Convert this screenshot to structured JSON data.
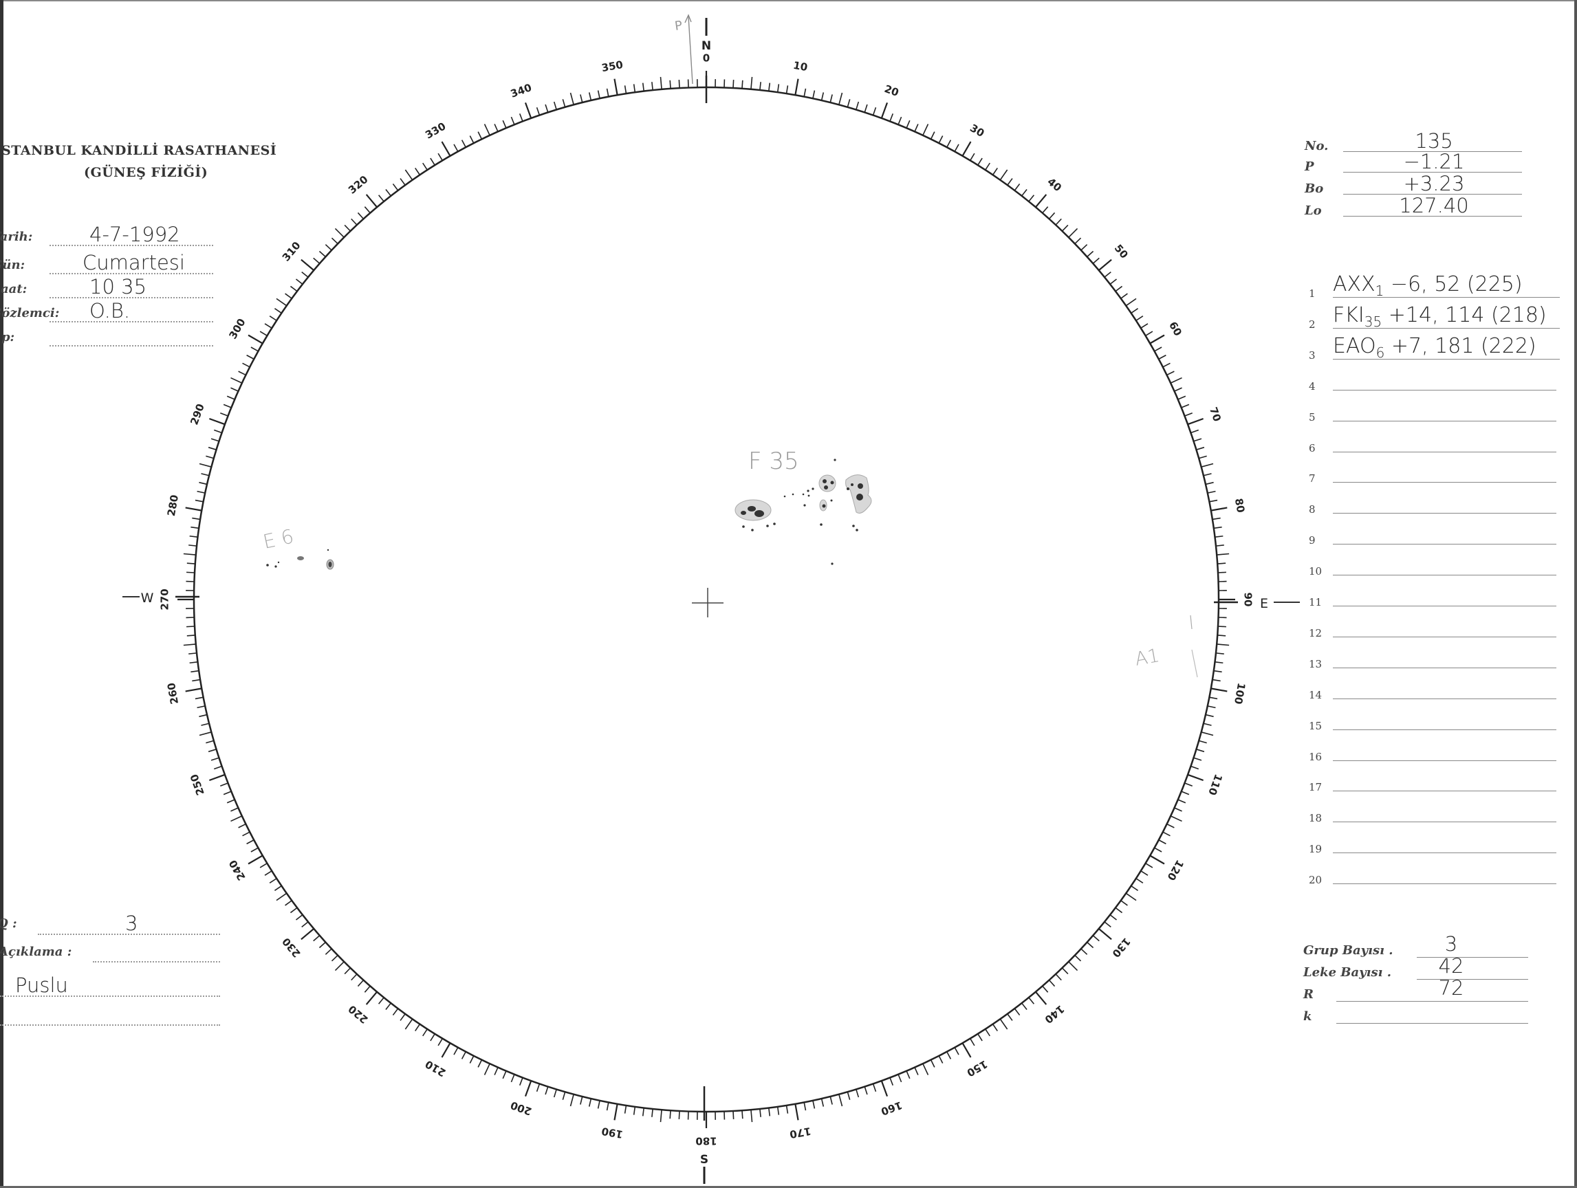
{
  "header": {
    "institution": "STANBUL KANDİLLİ RASATHANESİ",
    "department": "(GÜNEŞ FİZİĞİ)"
  },
  "observation": {
    "fields": [
      {
        "label": "Tarih:",
        "value": "4-7-1992"
      },
      {
        "label": "Gün:",
        "value": "Cumartesi"
      },
      {
        "label": "Saat:",
        "value": "10 35"
      },
      {
        "label": "Gözlemci:",
        "value": "O.B."
      },
      {
        "label": "Δp:",
        "value": ""
      }
    ],
    "q_label": "Q :",
    "q_value": "3",
    "remark_label": "Açıklama :",
    "remark_value": "Puslu"
  },
  "ephemeris": [
    {
      "label": "No.",
      "value": "135"
    },
    {
      "label": "P",
      "value": "−1.21"
    },
    {
      "label": "Bo",
      "value": "+3.23"
    },
    {
      "label": "Lo",
      "value": "127.40"
    }
  ],
  "groups": [
    {
      "n": "1",
      "value": "AXX",
      "sub": "1",
      "rest": " −6, 52 (225)"
    },
    {
      "n": "2",
      "value": "FKI",
      "sub": "35",
      "rest": " +14, 114 (218)"
    },
    {
      "n": "3",
      "value": "EAO",
      "sub": "6",
      "rest": " +7, 181 (222)"
    },
    {
      "n": "4",
      "value": ""
    },
    {
      "n": "5",
      "value": ""
    },
    {
      "n": "6",
      "value": ""
    },
    {
      "n": "7",
      "value": ""
    },
    {
      "n": "8",
      "value": ""
    },
    {
      "n": "9",
      "value": ""
    },
    {
      "n": "10",
      "value": ""
    },
    {
      "n": "11",
      "value": ""
    },
    {
      "n": "12",
      "value": ""
    },
    {
      "n": "13",
      "value": ""
    },
    {
      "n": "14",
      "value": ""
    },
    {
      "n": "15",
      "value": ""
    },
    {
      "n": "16",
      "value": ""
    },
    {
      "n": "17",
      "value": ""
    },
    {
      "n": "18",
      "value": ""
    },
    {
      "n": "19",
      "value": ""
    },
    {
      "n": "20",
      "value": ""
    }
  ],
  "totals": [
    {
      "label": "Grup Bayısı .",
      "value": "3"
    },
    {
      "label": "Leke Bayısı .",
      "value": "42"
    },
    {
      "label": "R",
      "value": "72"
    },
    {
      "label": "k",
      "value": ""
    }
  ],
  "disk": {
    "scale_labels": [
      "0",
      "10",
      "20",
      "30",
      "40",
      "50",
      "60",
      "70",
      "80",
      "90",
      "100",
      "110",
      "120",
      "130",
      "140",
      "150",
      "160",
      "170",
      "180",
      "190",
      "200",
      "210",
      "220",
      "230",
      "240",
      "250",
      "260",
      "270",
      "280",
      "290",
      "300",
      "310",
      "320",
      "330",
      "340",
      "350"
    ],
    "north": "N",
    "south": "S",
    "east": "E",
    "west": "W",
    "pole_label": "P",
    "group_labels": {
      "f": "F 35",
      "e": "E 6",
      "a": "A1"
    }
  }
}
